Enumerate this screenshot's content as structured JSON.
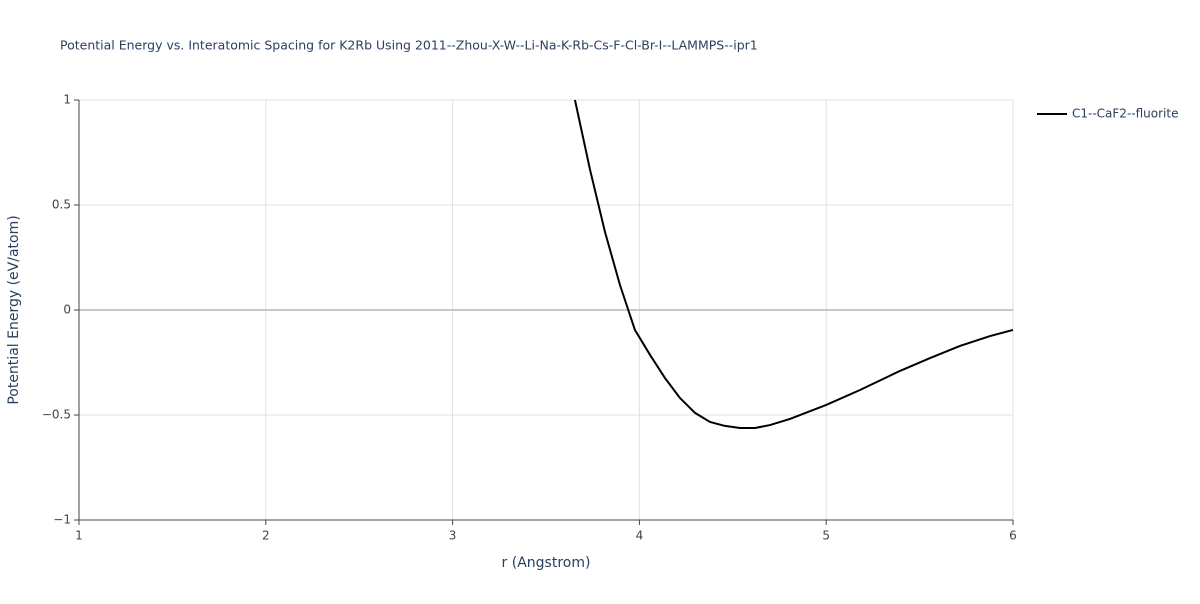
{
  "chart_data": {
    "type": "line",
    "title": "Potential Energy vs. Interatomic Spacing for K2Rb Using 2011--Zhou-X-W--Li-Na-K-Rb-Cs-F-Cl-Br-I--LAMMPS--ipr1",
    "x_label": "r (Angstrom)",
    "y_label": "Potential Energy (eV/atom)",
    "xlim": [
      1,
      6
    ],
    "xticks": [
      1,
      2,
      3,
      4,
      5,
      6
    ],
    "ylim": [
      -1,
      1
    ],
    "yticks": [
      {
        "value": -1,
        "label": "−1"
      },
      {
        "value": -0.5,
        "label": "−0.5"
      },
      0,
      0.5,
      1
    ],
    "grid": true,
    "legend": "right",
    "x": [
      3.655,
      3.736,
      3.816,
      3.896,
      3.976,
      4.057,
      4.137,
      4.217,
      4.298,
      4.378,
      4.458,
      4.539,
      4.619,
      4.699,
      4.806,
      5.0,
      5.181,
      5.395,
      5.556,
      5.716,
      5.877,
      6.0
    ],
    "series": [
      {
        "name": "C1--CaF2--fluorite",
        "color": "#000000",
        "values": [
          1,
          0.667,
          0.371,
          0.119,
          -0.095,
          -0.214,
          -0.324,
          -0.419,
          -0.49,
          -0.533,
          -0.552,
          -0.562,
          -0.562,
          -0.548,
          -0.519,
          -0.452,
          -0.381,
          -0.29,
          -0.229,
          -0.171,
          -0.124,
          -0.095
        ]
      }
    ]
  }
}
